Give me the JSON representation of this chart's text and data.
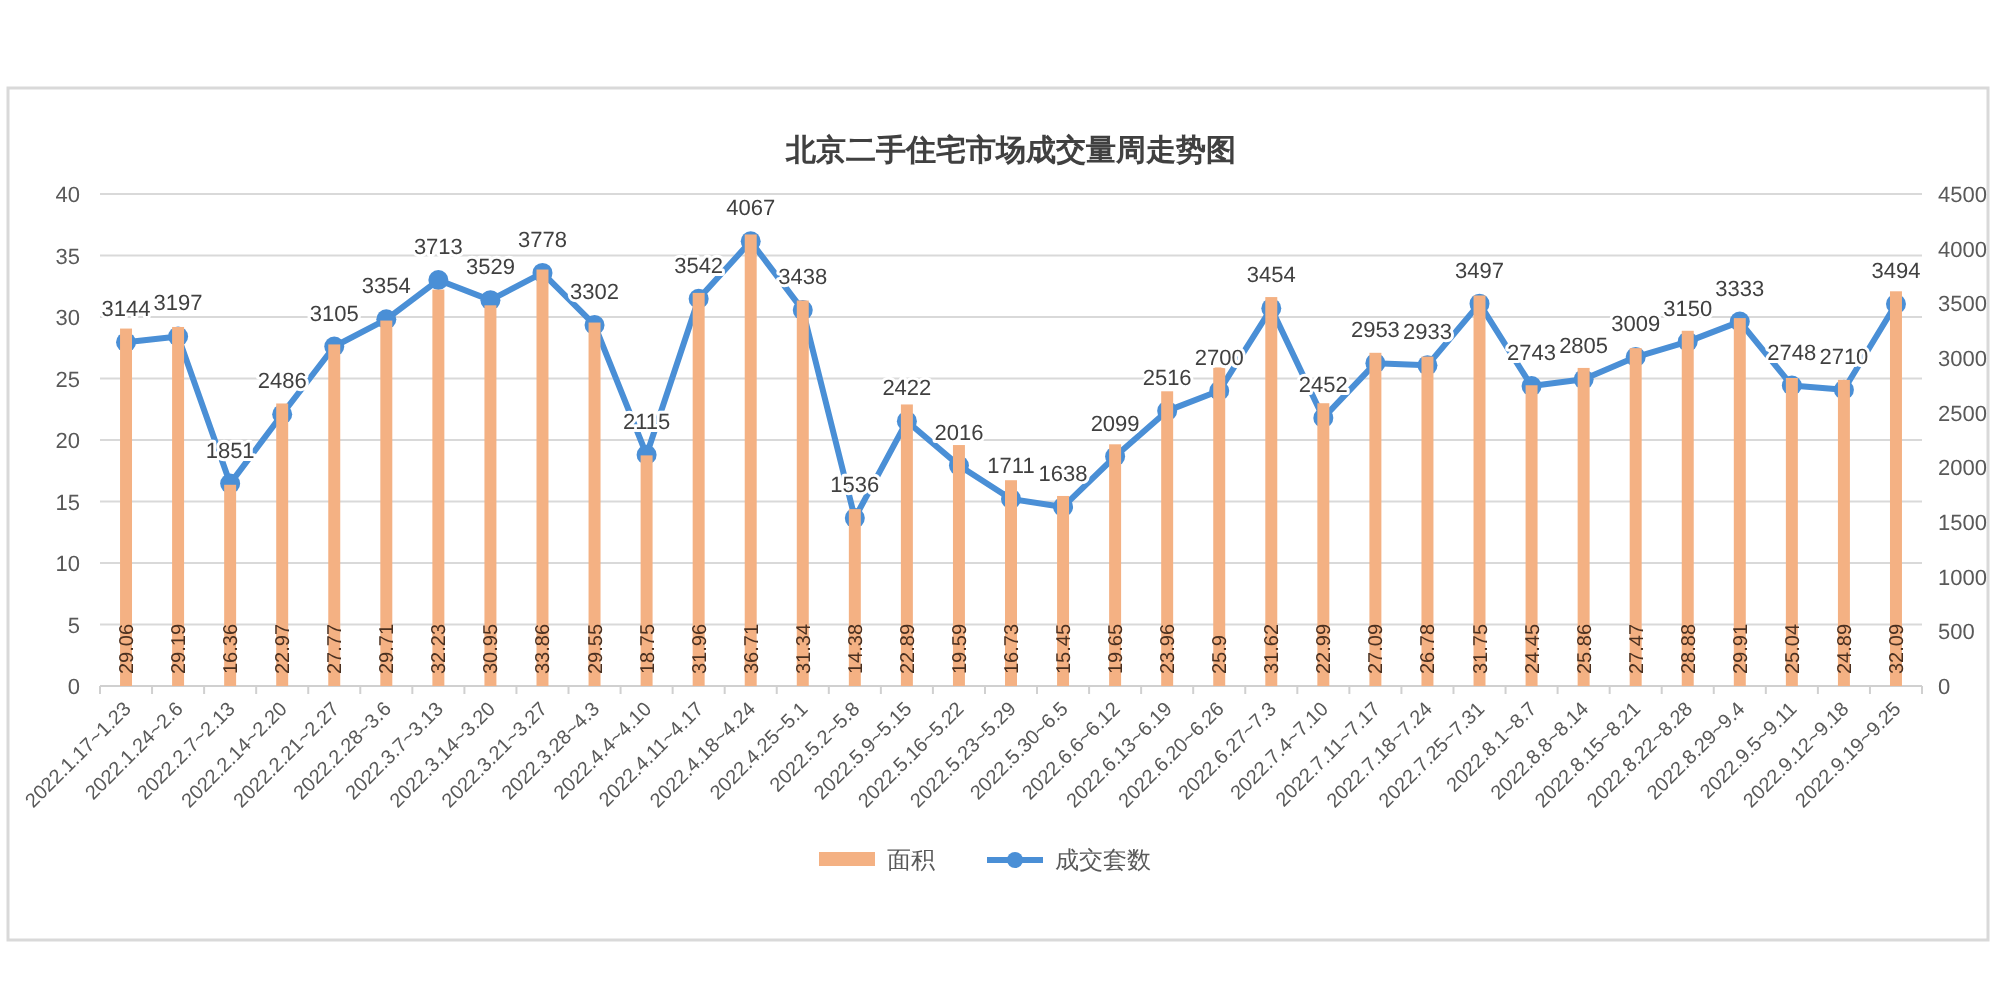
{
  "chart_data": {
    "type": "bar",
    "title": "北京二手住宅市场成交量周走势图",
    "categories": [
      "2022.1.17~1.23",
      "2022.1.24~2.6",
      "2022.2.7~2.13",
      "2022.2.14~2.20",
      "2022.2.21~2.27",
      "2022.2.28~3.6",
      "2022.3.7~3.13",
      "2022.3.14~3.20",
      "2022.3.21~3.27",
      "2022.3.28~4.3",
      "2022.4.4~4.10",
      "2022.4.11~4.17",
      "2022.4.18~4.24",
      "2022.4.25~5.1",
      "2022.5.2~5.8",
      "2022.5.9~5.15",
      "2022.5.16~5.22",
      "2022.5.23~5.29",
      "2022.5.30~6.5",
      "2022.6.6~6.12",
      "2022.6.13~6.19",
      "2022.6.20~6.26",
      "2022.6.27~7.3",
      "2022.7.4~7.10",
      "2022.7.11~7.17",
      "2022.7.18~7.24",
      "2022.7.25~7.31",
      "2022.8.1~8.7",
      "2022.8.8~8.14",
      "2022.8.15~8.21",
      "2022.8.22~8.28",
      "2022.8.29~9.4",
      "2022.9.5~9.11",
      "2022.9.12~9.18",
      "2022.9.19~9.25"
    ],
    "series": [
      {
        "name": "面积",
        "color": "#f4b183",
        "values": [
          29.06,
          29.19,
          16.36,
          22.97,
          27.77,
          29.71,
          32.23,
          30.95,
          33.86,
          29.55,
          18.75,
          31.96,
          36.71,
          31.34,
          14.38,
          22.89,
          19.59,
          16.73,
          15.45,
          19.65,
          23.96,
          25.9,
          31.62,
          22.99,
          27.09,
          26.78,
          31.75,
          24.45,
          25.86,
          27.47,
          28.88,
          29.91,
          25.04,
          24.89,
          32.09
        ]
      },
      {
        "name": "成交套数",
        "type": "line",
        "axis": "y2",
        "color": "#4a8fd6",
        "values": [
          3144,
          3197,
          1851,
          2486,
          3105,
          3354,
          3713,
          3529,
          3778,
          3302,
          2115,
          3542,
          4067,
          3438,
          1536,
          2422,
          2016,
          1711,
          1638,
          2099,
          2516,
          2700,
          3454,
          2452,
          2953,
          2933,
          3497,
          2743,
          2805,
          3009,
          3150,
          3333,
          2748,
          2710,
          3494
        ]
      }
    ],
    "ylim": [
      0,
      40
    ],
    "yticks": [
      0,
      5,
      10,
      15,
      20,
      25,
      30,
      35,
      40
    ],
    "y2lim": [
      0,
      4500
    ],
    "y2ticks": [
      0,
      500,
      1000,
      1500,
      2000,
      2500,
      3000,
      3500,
      4000,
      4500
    ],
    "grid": "y",
    "legend": "bottom",
    "data_labels": true,
    "marker": "circle",
    "line_style": "solid"
  }
}
